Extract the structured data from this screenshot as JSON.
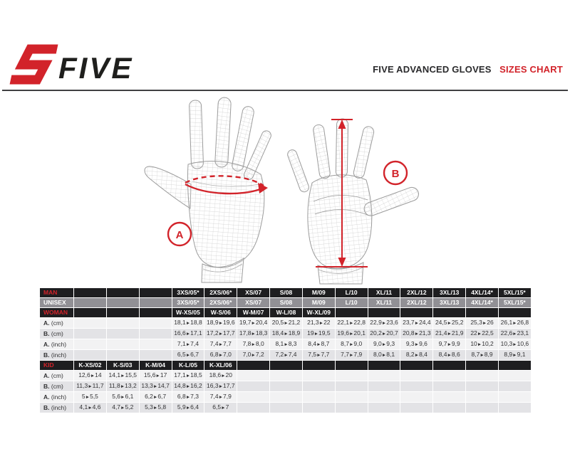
{
  "brand": {
    "name": "FIVE"
  },
  "header": {
    "title_main": "FIVE ADVANCED GLOVES",
    "title_accent": "SIZES CHART"
  },
  "diagram": {
    "marker_a": "A",
    "marker_b": "B"
  },
  "colors": {
    "accent_red": "#d2232a",
    "header_row_black": "#1e1e20",
    "unisex_row_gray": "#919095",
    "row_light": "#f2f2f3",
    "row_shade": "#e3e3e6"
  },
  "table": {
    "man": {
      "label": "MAN",
      "sizes": [
        "3XS/05*",
        "2XS/06*",
        "XS/07",
        "S/08",
        "M/09",
        "L/10",
        "XL/11",
        "2XL/12",
        "3XL/13",
        "4XL/14*",
        "5XL/15*"
      ]
    },
    "unisex": {
      "label": "UNISEX",
      "sizes": [
        "3XS/05*",
        "2XS/06*",
        "XS/07",
        "S/08",
        "M/09",
        "L/10",
        "XL/11",
        "2XL/12",
        "3XL/13",
        "4XL/14*",
        "5XL/15*"
      ]
    },
    "woman": {
      "label": "WOMAN",
      "sizes": [
        "W-XS/05",
        "W-S/06",
        "W-M/07",
        "W-L/08",
        "W-XL/09"
      ]
    },
    "adult_measures": [
      {
        "prefix": "A.",
        "unit": "(cm)",
        "values": [
          "18,1►18,8",
          "18,9►19,6",
          "19,7►20,4",
          "20,5►21,2",
          "21,3►22",
          "22,1►22,8",
          "22,9►23,6",
          "23,7►24,4",
          "24,5►25,2",
          "25,3►26",
          "26,1►26,8"
        ]
      },
      {
        "prefix": "B.",
        "unit": "(cm)",
        "values": [
          "16,6►17,1",
          "17,2►17,7",
          "17,8►18,3",
          "18,4►18,9",
          "19►19,5",
          "19,6►20,1",
          "20,2►20,7",
          "20,8►21,3",
          "21,4►21,9",
          "22►22,5",
          "22,6►23,1"
        ]
      },
      {
        "prefix": "A.",
        "unit": "(inch)",
        "values": [
          "7,1►7,4",
          "7,4►7,7",
          "7,8►8,0",
          "8,1►8,3",
          "8,4►8,7",
          "8,7►9,0",
          "9,0►9,3",
          "9,3►9,6",
          "9,7►9,9",
          "10►10,2",
          "10,3►10,6"
        ]
      },
      {
        "prefix": "B.",
        "unit": "(inch)",
        "values": [
          "6,5►6,7",
          "6,8►7,0",
          "7,0►7,2",
          "7,2►7,4",
          "7,5►7,7",
          "7,7►7,9",
          "8,0►8,1",
          "8,2►8,4",
          "8,4►8,6",
          "8,7►8,9",
          "8,9►9,1"
        ]
      }
    ],
    "kid": {
      "label": "KID",
      "sizes": [
        "K-XS/02",
        "K-S/03",
        "K-M/04",
        "K-L/05",
        "K-XL/06"
      ]
    },
    "kid_measures": [
      {
        "prefix": "A.",
        "unit": "(cm)",
        "values": [
          "12,6►14",
          "14,1►15,5",
          "15,6►17",
          "17,1►18,5",
          "18,6►20"
        ]
      },
      {
        "prefix": "B.",
        "unit": "(cm)",
        "values": [
          "11,3►11,7",
          "11,8►13,2",
          "13,3►14,7",
          "14,8►16,2",
          "16,3►17,7"
        ]
      },
      {
        "prefix": "A.",
        "unit": "(inch)",
        "values": [
          "5►5,5",
          "5,6►6,1",
          "6,2►6,7",
          "6,8►7,3",
          "7,4►7,9"
        ]
      },
      {
        "prefix": "B.",
        "unit": "(inch)",
        "values": [
          "4,1►4,6",
          "4,7►5,2",
          "5,3►5,8",
          "5,9►6,4",
          "6,5►7"
        ]
      }
    ]
  }
}
